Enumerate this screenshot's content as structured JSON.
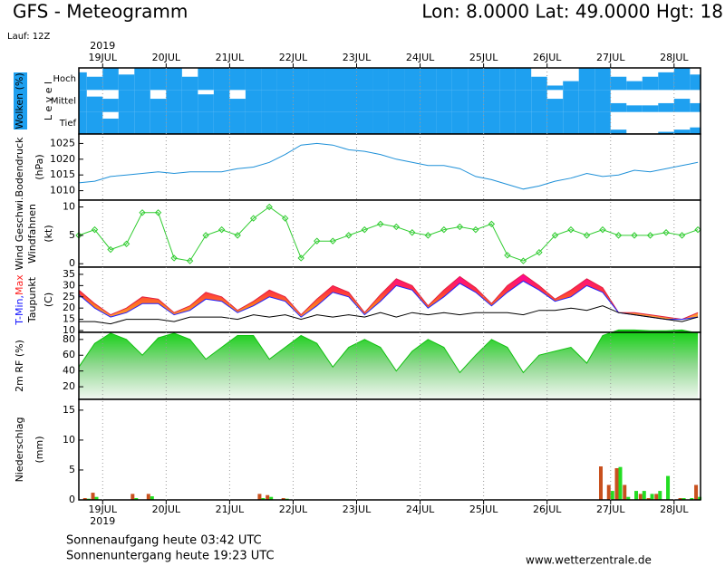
{
  "header": {
    "title": "GFS - Meteogramm",
    "location": "Lon: 8.0000 Lat: 49.0000 Hgt: 18",
    "run": "Lauf: 12Z"
  },
  "time_axis": {
    "year": "2019",
    "xlim": [
      -9,
      226
    ],
    "xticks": [
      {
        "value": 0,
        "label": "19JUL"
      },
      {
        "value": 24,
        "label": "20JUL"
      },
      {
        "value": 48,
        "label": "21JUL"
      },
      {
        "value": 72,
        "label": "22JUL"
      },
      {
        "value": 96,
        "label": "23JUL"
      },
      {
        "value": 120,
        "label": "24JUL"
      },
      {
        "value": 144,
        "label": "25JUL"
      },
      {
        "value": 168,
        "label": "26JUL"
      },
      {
        "value": 192,
        "label": "27JUL"
      },
      {
        "value": 216,
        "label": "28JUL"
      }
    ]
  },
  "chart_data": [
    {
      "type": "cloud_layers",
      "ylabel": "Wolken (%)",
      "ylabel2": "L e v e l",
      "label_background": "#1ea0f0",
      "ylim": [
        0,
        100
      ],
      "x": [
        -9,
        -3,
        3,
        9,
        15,
        21,
        27,
        33,
        39,
        45,
        51,
        57,
        63,
        69,
        75,
        81,
        87,
        93,
        99,
        105,
        111,
        117,
        123,
        129,
        135,
        141,
        147,
        153,
        159,
        165,
        171,
        177,
        183,
        189,
        195,
        201,
        207,
        213,
        219,
        225
      ],
      "series": [
        {
          "name": "Hoch",
          "color": "#1ea0f0",
          "values": [
            80,
            60,
            100,
            70,
            100,
            100,
            100,
            60,
            100,
            100,
            100,
            100,
            100,
            100,
            100,
            100,
            100,
            100,
            100,
            100,
            100,
            100,
            100,
            100,
            100,
            100,
            100,
            100,
            100,
            60,
            20,
            40,
            100,
            100,
            60,
            40,
            60,
            80,
            100,
            70
          ]
        },
        {
          "name": "Mittel",
          "color": "#1ea0f0",
          "values": [
            100,
            70,
            60,
            100,
            100,
            60,
            100,
            100,
            80,
            100,
            60,
            100,
            100,
            100,
            100,
            100,
            100,
            100,
            100,
            100,
            100,
            100,
            100,
            100,
            100,
            100,
            100,
            100,
            100,
            100,
            60,
            100,
            100,
            100,
            40,
            30,
            30,
            40,
            60,
            40
          ]
        },
        {
          "name": "Tief",
          "color": "#1ea0f0",
          "values": [
            100,
            100,
            70,
            100,
            100,
            100,
            100,
            100,
            100,
            100,
            100,
            100,
            100,
            100,
            100,
            100,
            100,
            100,
            100,
            100,
            100,
            100,
            100,
            100,
            100,
            100,
            100,
            100,
            100,
            100,
            100,
            100,
            100,
            100,
            20,
            0,
            0,
            10,
            20,
            30
          ]
        }
      ]
    },
    {
      "type": "line",
      "ylabel": "Bodendruck",
      "unit": "(hPa)",
      "ylim": [
        1007,
        1028
      ],
      "yticks": [
        1010,
        1015,
        1020,
        1025
      ],
      "x": [
        -9,
        -3,
        3,
        9,
        15,
        21,
        27,
        33,
        39,
        45,
        51,
        57,
        63,
        69,
        75,
        81,
        87,
        93,
        99,
        105,
        111,
        117,
        123,
        129,
        135,
        141,
        147,
        153,
        159,
        165,
        171,
        177,
        183,
        189,
        195,
        201,
        207,
        213,
        219,
        225
      ],
      "color": "#1e90d8",
      "values": [
        1012.5,
        1013,
        1014.5,
        1015,
        1015.5,
        1016,
        1015.5,
        1016,
        1016,
        1016,
        1017,
        1017.5,
        1019,
        1021.5,
        1024.5,
        1025,
        1024.5,
        1023,
        1022.5,
        1021.5,
        1020,
        1019,
        1018,
        1018,
        1017,
        1014.5,
        1013.5,
        1012,
        1010.5,
        1011.5,
        1013,
        1014,
        1015.5,
        1014.5,
        1015,
        1016.5,
        1016,
        1017,
        1018,
        1019
      ]
    },
    {
      "type": "line",
      "ylabel": "Wind Geschwi.",
      "ylabel_color": "#20c020",
      "ylabel2": "Windfahnen",
      "unit": "(kt)",
      "ylim": [
        -0.6,
        11.2
      ],
      "yticks": [
        0,
        5,
        10
      ],
      "x": [
        -9,
        -3,
        3,
        9,
        15,
        21,
        27,
        33,
        39,
        45,
        51,
        57,
        63,
        69,
        75,
        81,
        87,
        93,
        99,
        105,
        111,
        117,
        123,
        129,
        135,
        141,
        147,
        153,
        159,
        165,
        171,
        177,
        183,
        189,
        195,
        201,
        207,
        213,
        219,
        225
      ],
      "color": "#30cc30",
      "marker": "diamond",
      "values": [
        5,
        6,
        2.5,
        3.5,
        9,
        9,
        1,
        0.5,
        5,
        6,
        5,
        8,
        10,
        8,
        1,
        4,
        4,
        5,
        6,
        7,
        6.5,
        5.5,
        5,
        6,
        6.5,
        6,
        7,
        1.5,
        0.5,
        2,
        5,
        6,
        5,
        6,
        5,
        5,
        5,
        5.5,
        5,
        6
      ]
    },
    {
      "type": "band",
      "ylabel": [
        {
          "text": "T-Min,",
          "color": "#1010ff"
        },
        {
          "text": "Max",
          "color": "#ff2020"
        }
      ],
      "ylabel2": "Taupunkt",
      "unit": "(C)",
      "ylim": [
        9.2,
        38.2
      ],
      "yticks": [
        10,
        15,
        20,
        25,
        30,
        35
      ],
      "x": [
        -9,
        -3,
        3,
        9,
        15,
        21,
        27,
        33,
        39,
        45,
        51,
        57,
        63,
        69,
        75,
        81,
        87,
        93,
        99,
        105,
        111,
        117,
        123,
        129,
        135,
        141,
        147,
        153,
        159,
        165,
        171,
        177,
        183,
        189,
        195,
        201,
        207,
        213,
        219,
        225
      ],
      "series": [
        {
          "color": "#e02040",
          "values": [
            28,
            22,
            17,
            20,
            25,
            24,
            18,
            21,
            27,
            25,
            19,
            23,
            28,
            25,
            17,
            24,
            30,
            27,
            18,
            26,
            33,
            30,
            21,
            28,
            34,
            29,
            22,
            30,
            35,
            30,
            24,
            28,
            33,
            29,
            18,
            18,
            17,
            16,
            15,
            18
          ]
        },
        {
          "color": "#2020ff",
          "values": [
            26,
            20,
            16,
            18,
            22,
            22,
            17,
            19,
            24,
            23,
            18,
            21,
            25,
            23,
            16,
            21,
            27,
            25,
            17,
            23,
            30,
            28,
            20,
            25,
            31,
            27,
            21,
            27,
            32,
            28,
            23,
            25,
            30,
            27,
            18,
            17,
            16,
            15,
            15,
            16
          ]
        },
        {
          "color": "#000000",
          "values": [
            14,
            14,
            13,
            15,
            15,
            15,
            14,
            16,
            16,
            16,
            15,
            17,
            16,
            17,
            15,
            17,
            16,
            17,
            16,
            18,
            16,
            18,
            17,
            18,
            17,
            18,
            18,
            18,
            17,
            19,
            19,
            20,
            19,
            21,
            18,
            17,
            16,
            15,
            14,
            16
          ]
        }
      ]
    },
    {
      "type": "area",
      "ylabel": "2m RF (%)",
      "ylabel_color": "#20c020",
      "ylim": [
        4,
        89
      ],
      "yticks": [
        20,
        40,
        60,
        80
      ],
      "x": [
        -9,
        -3,
        3,
        9,
        15,
        21,
        27,
        33,
        39,
        45,
        51,
        57,
        63,
        69,
        75,
        81,
        87,
        93,
        99,
        105,
        111,
        117,
        123,
        129,
        135,
        141,
        147,
        153,
        159,
        165,
        171,
        177,
        183,
        189,
        195,
        201,
        207,
        213,
        219,
        225
      ],
      "color": "#10c010",
      "values": [
        45,
        75,
        88,
        80,
        60,
        82,
        88,
        80,
        55,
        70,
        85,
        85,
        55,
        70,
        85,
        75,
        45,
        70,
        80,
        70,
        40,
        65,
        80,
        70,
        38,
        60,
        80,
        70,
        38,
        60,
        65,
        70,
        50,
        85,
        92,
        92,
        91,
        91,
        92,
        88
      ]
    },
    {
      "type": "bar",
      "ylabel": "Niederschlag",
      "unit": "(mm)",
      "ylim": [
        0,
        16.8
      ],
      "yticks": [
        0,
        5,
        10,
        15
      ],
      "x": [
        -6,
        -3,
        12,
        18,
        60,
        63,
        69,
        189,
        192,
        195,
        198,
        201,
        204,
        207,
        210,
        213,
        219,
        222,
        225
      ],
      "series": [
        {
          "color": "#c8501e",
          "values": [
            0.3,
            1.2,
            1,
            1,
            1,
            0.8,
            0.3,
            5.6,
            2.5,
            5.3,
            2.5,
            0,
            1,
            0.3,
            1,
            0,
            0.3,
            0,
            2.5
          ]
        },
        {
          "color": "#22dd22",
          "values": [
            0.2,
            0.5,
            0.3,
            0.6,
            0.3,
            0.5,
            0.2,
            0,
            1.5,
            5.5,
            0.5,
            1.5,
            1.5,
            1,
            1.5,
            4,
            0.3,
            0.3,
            0.5
          ]
        }
      ]
    }
  ],
  "footer": {
    "sunrise": "Sonnenaufgang heute 03:42 UTC",
    "sunset": "Sonnenuntergang heute 19:23 UTC",
    "source": "www.wetterzentrale.de"
  }
}
